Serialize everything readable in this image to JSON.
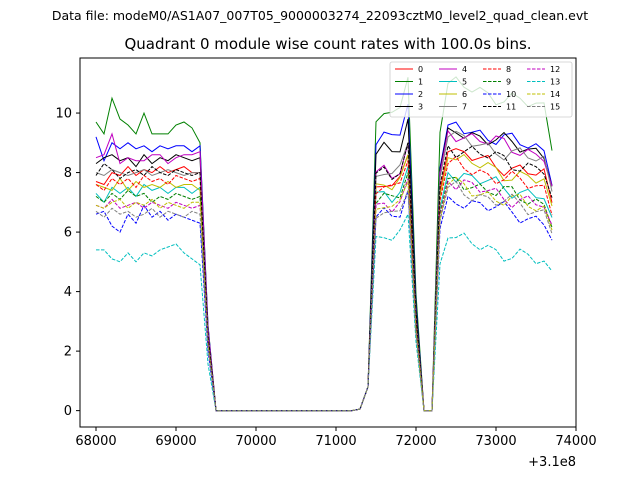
{
  "chart_data": {
    "type": "line",
    "suptitle": "Data file: modeM0/AS1A07_007T05_9000003274_22093cztM0_level2_quad_clean.evt",
    "title": "Quadrant 0 module wise count rates with 100.0s bins.",
    "xlabel": "",
    "ylabel": "",
    "x_offset_label": "+3.1e8",
    "xlim": [
      67800,
      74000
    ],
    "ylim": [
      -0.55,
      11.85
    ],
    "x_ticks": [
      68000,
      69000,
      70000,
      71000,
      72000,
      73000,
      74000
    ],
    "y_ticks": [
      0,
      2,
      4,
      6,
      8,
      10
    ],
    "legend_position": "upper right",
    "x": [
      68000,
      68100,
      68200,
      68300,
      68400,
      68500,
      68600,
      68700,
      68800,
      68900,
      69000,
      69100,
      69200,
      69300,
      69400,
      69500,
      69600,
      69700,
      69800,
      69900,
      70000,
      70100,
      70200,
      70300,
      70400,
      70500,
      70600,
      70700,
      70800,
      70900,
      71000,
      71100,
      71200,
      71300,
      71400,
      71500,
      71600,
      71700,
      71800,
      71900,
      72000,
      72100,
      72200,
      72300,
      72400,
      72500,
      72600,
      72700,
      72800,
      72900,
      73000,
      73100,
      73200,
      73300,
      73400,
      73500,
      73600,
      73700
    ],
    "series": [
      {
        "name": "0",
        "color": "#ff0000",
        "dash": "solid",
        "base": [
          7.7,
          7.6,
          8.0,
          7.9,
          8.2,
          7.9,
          8.1,
          8.0,
          8.2,
          8.0,
          8.1,
          8.2,
          8.0,
          8.0
        ],
        "b2": 8.6,
        "b3": 8.7
      },
      {
        "name": "1",
        "color": "#008000",
        "dash": "solid",
        "base": [
          9.7,
          9.3,
          10.5,
          9.8,
          9.6,
          9.3,
          10.0,
          9.3,
          9.3,
          9.3,
          9.6,
          9.7,
          9.5,
          9.0
        ],
        "b2": 11.2,
        "b3": 11.0
      },
      {
        "name": "2",
        "color": "#0000ff",
        "dash": "solid",
        "base": [
          9.2,
          8.4,
          9.0,
          8.8,
          9.0,
          8.8,
          8.9,
          8.7,
          8.9,
          8.8,
          8.9,
          8.9,
          8.7,
          8.9
        ],
        "b2": 10.3,
        "b3": 9.6
      },
      {
        "name": "3",
        "color": "#000000",
        "dash": "solid",
        "base": [
          8.3,
          8.5,
          8.6,
          8.4,
          8.5,
          8.2,
          8.6,
          8.3,
          8.5,
          8.4,
          8.6,
          8.5,
          8.4,
          8.5
        ],
        "b2": 9.8,
        "b3": 9.5
      },
      {
        "name": "4",
        "color": "#c000c0",
        "dash": "solid",
        "base": [
          8.5,
          8.6,
          9.3,
          8.3,
          8.5,
          8.4,
          8.4,
          8.6,
          8.6,
          8.3,
          8.5,
          8.6,
          8.6,
          8.7
        ],
        "b2": 9.0,
        "b3": 9.4
      },
      {
        "name": "5",
        "color": "#00bfbf",
        "dash": "solid",
        "base": [
          7.3,
          7.0,
          7.5,
          7.3,
          7.5,
          7.2,
          7.6,
          7.4,
          7.5,
          7.3,
          7.5,
          7.5,
          7.3,
          7.5
        ],
        "b2": 8.2,
        "b3": 8.0
      },
      {
        "name": "6",
        "color": "#bfbf00",
        "dash": "solid",
        "base": [
          7.6,
          7.5,
          7.4,
          7.8,
          7.4,
          7.7,
          7.5,
          7.6,
          7.5,
          7.7,
          7.5,
          7.6,
          7.6,
          7.4
        ],
        "b2": 8.6,
        "b3": 8.5
      },
      {
        "name": "7",
        "color": "#808080",
        "dash": "solid",
        "base": [
          8.0,
          7.9,
          8.1,
          8.0,
          7.9,
          8.0,
          8.1,
          7.9,
          8.0,
          8.1,
          8.0,
          7.9,
          8.0,
          8.0
        ],
        "b2": 9.0,
        "b3": 9.2
      },
      {
        "name": "8",
        "color": "#ff0000",
        "dash": "dashed",
        "base": [
          7.6,
          7.4,
          7.8,
          7.6,
          7.8,
          7.5,
          7.9,
          7.7,
          7.8,
          7.6,
          7.9,
          7.8,
          7.7,
          7.8
        ],
        "b2": 8.4,
        "b3": 8.3
      },
      {
        "name": "9",
        "color": "#008000",
        "dash": "dashed",
        "base": [
          7.2,
          7.0,
          7.3,
          7.1,
          7.4,
          7.2,
          7.3,
          7.0,
          7.2,
          7.1,
          7.3,
          7.2,
          7.1,
          7.2
        ],
        "b2": 8.0,
        "b3": 7.8
      },
      {
        "name": "10",
        "color": "#0000ff",
        "dash": "dashed",
        "base": [
          6.6,
          6.7,
          6.2,
          6.0,
          6.6,
          6.3,
          6.9,
          6.5,
          6.7,
          6.4,
          6.6,
          6.5,
          6.4,
          6.3
        ],
        "b2": 7.4,
        "b3": 7.2
      },
      {
        "name": "11",
        "color": "#000000",
        "dash": "dashed",
        "base": [
          7.9,
          8.3,
          8.1,
          7.8,
          8.0,
          8.1,
          7.9,
          8.2,
          8.0,
          7.9,
          8.1,
          8.0,
          7.9,
          8.0
        ],
        "b2": 9.0,
        "b3": 8.9
      },
      {
        "name": "12",
        "color": "#c000c0",
        "dash": "dashed",
        "base": [
          6.9,
          6.8,
          7.1,
          6.8,
          6.9,
          7.0,
          6.8,
          7.0,
          6.9,
          6.8,
          7.0,
          6.9,
          6.8,
          6.9
        ],
        "b2": 7.8,
        "b3": 7.7
      },
      {
        "name": "13",
        "color": "#00bfbf",
        "dash": "dashed",
        "base": [
          5.4,
          5.4,
          5.1,
          5.0,
          5.3,
          5.0,
          5.3,
          5.2,
          5.4,
          5.5,
          5.6,
          5.3,
          5.1,
          4.9
        ],
        "b2": 6.6,
        "b3": 5.8
      },
      {
        "name": "14",
        "color": "#bfbf00",
        "dash": "dashed",
        "base": [
          6.9,
          6.8,
          7.0,
          7.1,
          6.8,
          7.0,
          6.9,
          7.1,
          6.8,
          7.0,
          6.9,
          6.8,
          7.0,
          7.0
        ],
        "b2": 7.7,
        "b3": 7.6
      },
      {
        "name": "15",
        "color": "#808080",
        "dash": "dashed",
        "base": [
          6.7,
          6.5,
          6.8,
          6.6,
          6.7,
          6.5,
          6.6,
          6.8,
          6.5,
          6.7,
          6.6,
          6.5,
          6.7,
          6.6
        ],
        "b2": 7.4,
        "b3": 7.5
      }
    ]
  }
}
